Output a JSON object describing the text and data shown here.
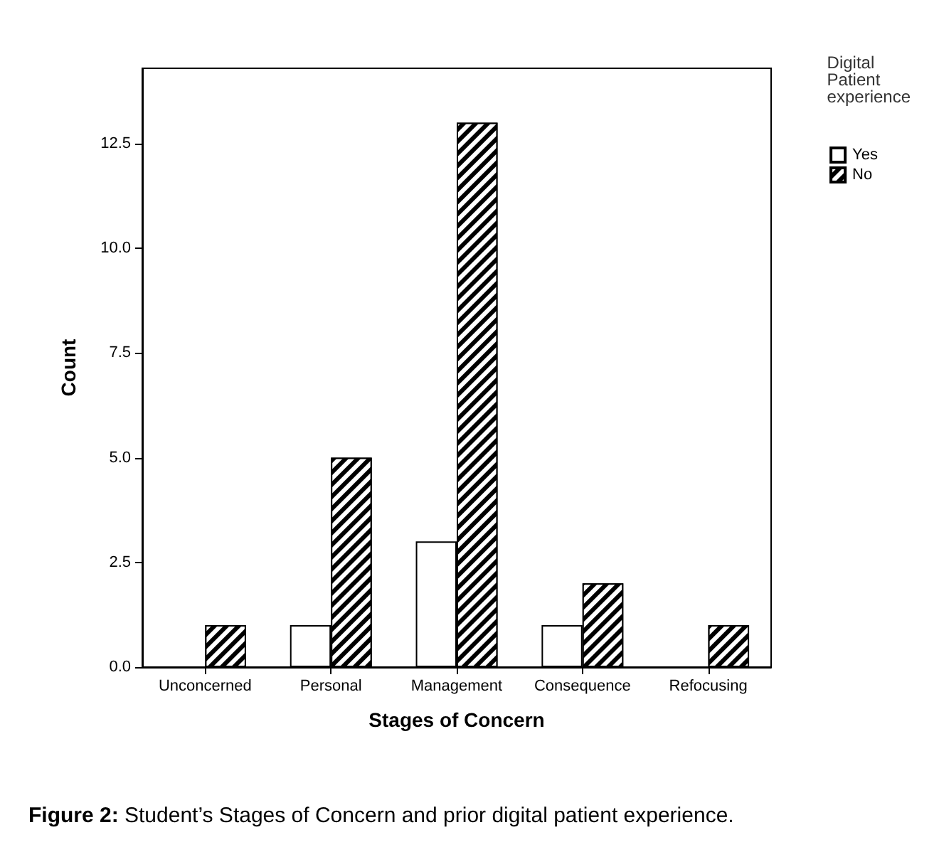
{
  "chart_data": {
    "type": "bar",
    "xlabel": "Stages of Concern",
    "ylabel": "Count",
    "legend_title": "Digital Patient experience",
    "categories": [
      "Unconcerned",
      "Personal",
      "Management",
      "Consequence",
      "Refocusing"
    ],
    "series": [
      {
        "name": "Yes",
        "color": "#ffffff",
        "values": [
          null,
          1,
          3,
          1,
          null
        ]
      },
      {
        "name": "No",
        "color": "#000000",
        "values": [
          1,
          5,
          13,
          2,
          1
        ]
      }
    ],
    "ylim": [
      0,
      14.3
    ],
    "yticks": [
      {
        "value": 0,
        "label": "0.0"
      },
      {
        "value": 2.5,
        "label": "2.5"
      },
      {
        "value": 5,
        "label": "5.0"
      },
      {
        "value": 7.5,
        "label": "7.5"
      },
      {
        "value": 10,
        "label": "10.0"
      },
      {
        "value": 12.5,
        "label": "12.5"
      }
    ],
    "grid": false,
    "legend": "top right",
    "annotations": [
      "Figure 2: Student’s Stages of Concern and prior digital patient experience."
    ]
  }
}
